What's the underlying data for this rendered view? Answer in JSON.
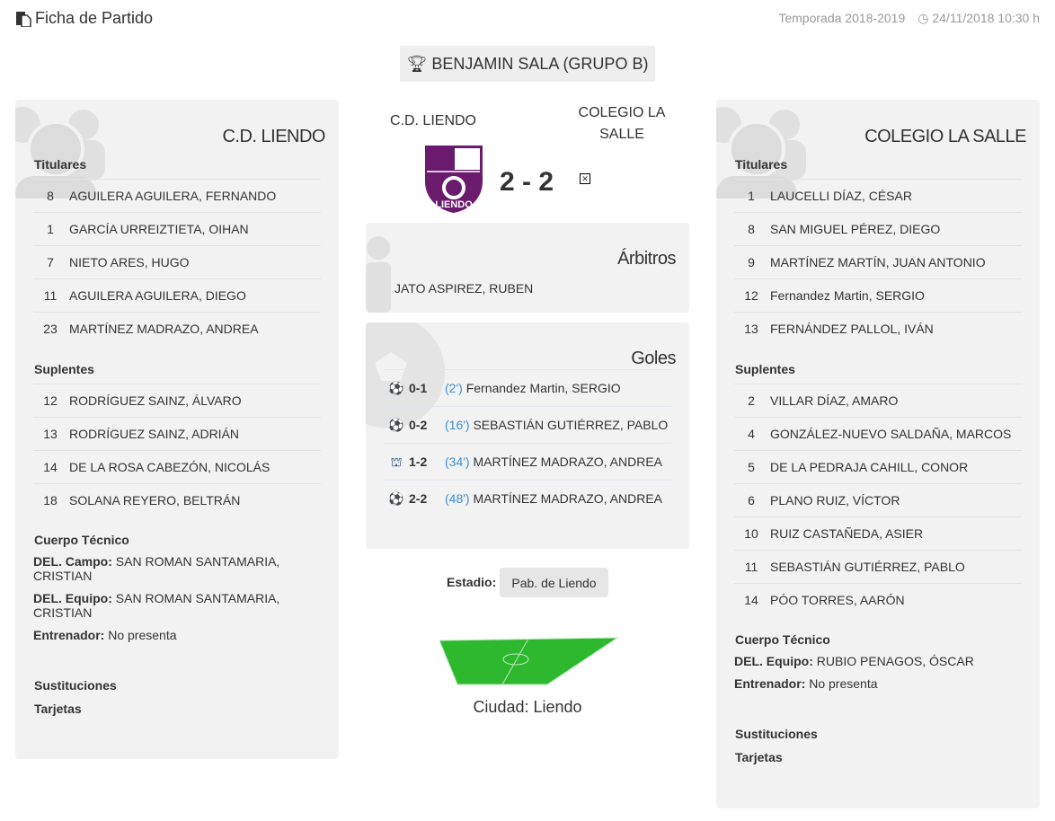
{
  "header": {
    "title": "Ficha de Partido",
    "season": "Temporada 2018-2019",
    "datetime": "24/11/2018 10:30 h"
  },
  "competition": "BENJAMIN SALA (GRUPO B)",
  "match": {
    "home": "C.D. LIENDO",
    "away": "COLEGIO LA SALLE",
    "score": "2 - 2",
    "home_logo_text": "LIENDO"
  },
  "labels": {
    "titulares": "Titulares",
    "suplentes": "Suplentes",
    "cuerpo": "Cuerpo Técnico",
    "sustituciones": "Sustituciones",
    "tarjetas": "Tarjetas",
    "arbitros": "Árbitros",
    "goles": "Goles",
    "estadio": "Estadio:"
  },
  "home": {
    "name": "C.D. LIENDO",
    "titulares": [
      {
        "n": "8",
        "p": "AGUILERA AGUILERA, FERNANDO"
      },
      {
        "n": "1",
        "p": "GARCÍA URREIZTIETA, OIHAN"
      },
      {
        "n": "7",
        "p": "NIETO ARES, HUGO"
      },
      {
        "n": "11",
        "p": "AGUILERA AGUILERA, DIEGO"
      },
      {
        "n": "23",
        "p": "MARTÍNEZ MADRAZO, ANDREA"
      }
    ],
    "suplentes": [
      {
        "n": "12",
        "p": "RODRÍGUEZ SAINZ, ÁLVARO"
      },
      {
        "n": "13",
        "p": "RODRÍGUEZ SAINZ, ADRIÁN"
      },
      {
        "n": "14",
        "p": "DE LA ROSA CABEZÓN, NICOLÁS"
      },
      {
        "n": "18",
        "p": "SOLANA REYERO, BELTRÁN"
      }
    ],
    "staff": [
      {
        "role": "DEL. Campo:",
        "name": "SAN ROMAN SANTAMARIA, CRISTIAN"
      },
      {
        "role": "DEL. Equipo:",
        "name": "SAN ROMAN SANTAMARIA, CRISTIAN"
      },
      {
        "role": "Entrenador:",
        "name": "No presenta"
      }
    ]
  },
  "away": {
    "name": "COLEGIO LA SALLE",
    "titulares": [
      {
        "n": "1",
        "p": "LAUCELLI DÍAZ, CÉSAR"
      },
      {
        "n": "8",
        "p": "SAN MIGUEL PÉREZ, DIEGO"
      },
      {
        "n": "9",
        "p": "MARTÍNEZ MARTÍN, JUAN ANTONIO"
      },
      {
        "n": "12",
        "p": "Fernandez Martin, SERGIO"
      },
      {
        "n": "13",
        "p": "FERNÁNDEZ PALLOL, IVÁN"
      }
    ],
    "suplentes": [
      {
        "n": "2",
        "p": "VILLAR DÍAZ, AMARO"
      },
      {
        "n": "4",
        "p": "GONZÁLEZ-NUEVO SALDAÑA, MARCOS"
      },
      {
        "n": "5",
        "p": "DE LA PEDRAJA CAHILL, CONOR"
      },
      {
        "n": "6",
        "p": "PLANO RUIZ, VÍCTOR"
      },
      {
        "n": "10",
        "p": "RUIZ CASTAÑEDA, ASIER"
      },
      {
        "n": "11",
        "p": "SEBASTIÁN GUTIÉRREZ, PABLO"
      },
      {
        "n": "14",
        "p": "PÓO TORRES, AARÓN"
      }
    ],
    "staff": [
      {
        "role": "DEL. Equipo:",
        "name": "RUBIO PENAGOS, ÓSCAR"
      },
      {
        "role": "Entrenador:",
        "name": "No presenta"
      }
    ]
  },
  "referees": [
    "JATO ASPIREZ, RUBEN"
  ],
  "goals": [
    {
      "icon": "soccer-ball-icon",
      "score": "0-1",
      "minute": "(2')",
      "player": "Fernandez Martin, SERGIO"
    },
    {
      "icon": "soccer-ball-icon",
      "score": "0-2",
      "minute": "(16')",
      "player": "SEBASTIÁN GUTIÉRREZ, PABLO"
    },
    {
      "icon": "penalty-goal-icon",
      "score": "1-2",
      "minute": "(34')",
      "player": "MARTÍNEZ MADRAZO, ANDREA"
    },
    {
      "icon": "soccer-ball-icon",
      "score": "2-2",
      "minute": "(48')",
      "player": "MARTÍNEZ MADRAZO, ANDREA"
    }
  ],
  "stadium": "Pab. de Liendo",
  "city": "Ciudad: Liendo",
  "colors": {
    "panel": "#f2f2f2",
    "minute": "#3a8fd9",
    "logo": "#6a1b6e",
    "pitch": "#2db82d"
  }
}
